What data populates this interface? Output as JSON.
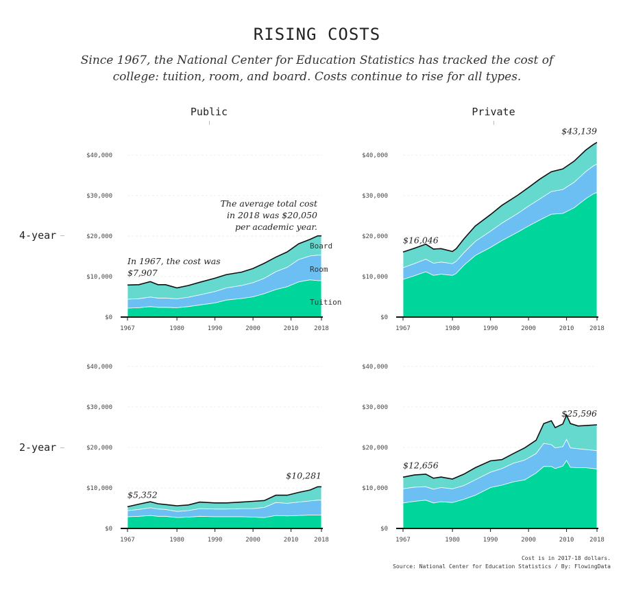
{
  "title": "RISING COSTS",
  "subtitle": "Since 1967, the National Center for Education Statistics has tracked the cost of college: tuition, room, and board. Costs continue to rise for all types.",
  "columns": [
    "Public",
    "Private"
  ],
  "rows": [
    "4-year",
    "2-year"
  ],
  "note_line1": "Cost is in 2017-18 dollars.",
  "note_line2": "Source: National Center for Education Statistics / By: FlowingData",
  "colors": {
    "tuition": "#00d69b",
    "room": "#6cbff2",
    "board": "#66d9cf",
    "line": "#111111"
  },
  "chart_data": [
    {
      "type": "area",
      "panel": "Public 4-year",
      "x": [
        1967,
        1970,
        1973,
        1975,
        1977,
        1980,
        1983,
        1986,
        1990,
        1993,
        1997,
        2000,
        2003,
        2006,
        2009,
        2012,
        2015,
        2017,
        2018
      ],
      "series": [
        {
          "name": "Tuition",
          "values": [
            2200,
            2300,
            2600,
            2400,
            2400,
            2300,
            2600,
            3000,
            3500,
            4200,
            4600,
            5000,
            5800,
            6800,
            7500,
            8700,
            9200,
            9000,
            9000
          ]
        },
        {
          "name": "Room",
          "values": [
            2200,
            2250,
            2350,
            2300,
            2300,
            2200,
            2300,
            2500,
            2800,
            3000,
            3200,
            3500,
            3800,
            4400,
            4800,
            5500,
            5900,
            6300,
            6300
          ]
        },
        {
          "name": "Board",
          "values": [
            3507,
            3450,
            3800,
            3300,
            3300,
            2700,
            2900,
            3100,
            3300,
            3300,
            3300,
            3500,
            3700,
            3600,
            3800,
            3900,
            4100,
            4750,
            4750
          ]
        }
      ],
      "totals": [
        7907,
        8000,
        8750,
        8000,
        8000,
        7200,
        7800,
        8600,
        9600,
        10500,
        11100,
        12000,
        13300,
        14800,
        16100,
        18100,
        19200,
        20050,
        20050
      ],
      "ylim": [
        0,
        40000
      ],
      "yticks": [
        "$0",
        "$10,000",
        "$20,000",
        "$30,000",
        "$40,000"
      ],
      "xticks": [
        "1967",
        "1980",
        "1990",
        "2000",
        "2010",
        "2018"
      ],
      "annotations": {
        "start_line1": "In 1967, the cost was",
        "start_line2": "$7,907",
        "end_line1": "The average total cost",
        "end_line2": "in 2018 was $20,050",
        "end_line3": "per academic year.",
        "label_board": "Board",
        "label_room": "Room",
        "label_tuition": "Tuition"
      }
    },
    {
      "type": "area",
      "panel": "Private 4-year",
      "x": [
        1967,
        1970,
        1973,
        1975,
        1977,
        1980,
        1981,
        1983,
        1986,
        1990,
        1993,
        1997,
        2000,
        2003,
        2006,
        2009,
        2012,
        2015,
        2017,
        2018
      ],
      "series": [
        {
          "name": "Tuition",
          "values": [
            9300,
            10200,
            11200,
            10300,
            10600,
            10300,
            10800,
            12800,
            15200,
            17200,
            18900,
            20900,
            22500,
            24000,
            25400,
            25600,
            27000,
            29200,
            30400,
            30800
          ]
        },
        {
          "name": "Room",
          "values": [
            2900,
            3000,
            3100,
            3000,
            3000,
            2900,
            3000,
            3100,
            3500,
            4000,
            4300,
            4600,
            4900,
            5200,
            5600,
            5900,
            6300,
            6700,
            6900,
            7000
          ]
        },
        {
          "name": "Board",
          "values": [
            3846,
            3800,
            3700,
            3500,
            3300,
            3000,
            3100,
            3400,
            3800,
            4100,
            4400,
            4500,
            4600,
            4900,
            4900,
            5100,
            5200,
            5300,
            5300,
            5339
          ]
        }
      ],
      "totals": [
        16046,
        17000,
        18000,
        16800,
        16900,
        16200,
        16900,
        19300,
        22500,
        25300,
        27600,
        30000,
        32000,
        34100,
        35900,
        36600,
        38500,
        41200,
        42600,
        43139
      ],
      "ylim": [
        0,
        40000
      ],
      "yticks": [
        "$0",
        "$10,000",
        "$20,000",
        "$30,000",
        "$40,000"
      ],
      "xticks": [
        "1967",
        "1980",
        "1990",
        "2000",
        "2010",
        "2018"
      ],
      "annotations": {
        "start_value": "$16,046",
        "end_value": "$43,139"
      }
    },
    {
      "type": "area",
      "panel": "Public 2-year",
      "x": [
        1967,
        1970,
        1973,
        1975,
        1977,
        1980,
        1983,
        1986,
        1990,
        1993,
        1997,
        2000,
        2003,
        2006,
        2009,
        2012,
        2015,
        2017,
        2018
      ],
      "series": [
        {
          "name": "Tuition",
          "values": [
            2900,
            3000,
            3200,
            3000,
            3000,
            2700,
            2800,
            3000,
            2900,
            2900,
            2900,
            2800,
            2700,
            3200,
            3100,
            3200,
            3300,
            3300,
            3300
          ]
        },
        {
          "name": "Room",
          "values": [
            1500,
            1700,
            1900,
            1800,
            1700,
            1500,
            1600,
            1900,
            1900,
            1900,
            2000,
            2100,
            2500,
            3200,
            3100,
            3300,
            3500,
            3700,
            3700
          ]
        },
        {
          "name": "Board",
          "values": [
            952,
            1300,
            1500,
            1300,
            1200,
            1400,
            1400,
            1600,
            1500,
            1500,
            1600,
            1800,
            1700,
            1800,
            2000,
            2400,
            2700,
            3281,
            3281
          ]
        }
      ],
      "totals": [
        5352,
        6000,
        6600,
        6100,
        5900,
        5600,
        5800,
        6500,
        6300,
        6300,
        6500,
        6700,
        6900,
        8200,
        8200,
        8900,
        9500,
        10281,
        10281
      ],
      "ylim": [
        0,
        40000
      ],
      "yticks": [
        "$0",
        "$10,000",
        "$20,000",
        "$30,000",
        "$40,000"
      ],
      "xticks": [
        "1967",
        "1980",
        "1990",
        "2000",
        "2010",
        "2018"
      ],
      "annotations": {
        "start_value": "$5,352",
        "end_value": "$10,281"
      }
    },
    {
      "type": "area",
      "panel": "Private 2-year",
      "x": [
        1967,
        1970,
        1973,
        1975,
        1977,
        1980,
        1983,
        1986,
        1990,
        1993,
        1996,
        1999,
        2002,
        2004,
        2006,
        2007,
        2009,
        2010,
        2011,
        2013,
        2015,
        2018
      ],
      "series": [
        {
          "name": "Tuition",
          "values": [
            6300,
            6700,
            7000,
            6300,
            6600,
            6400,
            7200,
            8200,
            10100,
            10700,
            11500,
            12000,
            13700,
            15300,
            15300,
            14800,
            15400,
            16800,
            15100,
            15000,
            15000,
            14700
          ]
        },
        {
          "name": "Room",
          "values": [
            3500,
            3500,
            3300,
            3400,
            3500,
            3400,
            3400,
            3800,
            3800,
            4100,
            4600,
            4900,
            4800,
            5700,
            5400,
            5100,
            4800,
            5200,
            4800,
            4700,
            4500,
            4500
          ]
        },
        {
          "name": "Board",
          "values": [
            2856,
            3000,
            3100,
            2700,
            2600,
            2400,
            2800,
            3000,
            2800,
            2200,
            2400,
            3000,
            3300,
            4900,
            5900,
            5000,
            5600,
            6000,
            6000,
            5600,
            5900,
            6396
          ]
        }
      ],
      "totals": [
        12656,
        13200,
        13400,
        12400,
        12700,
        12200,
        13400,
        15000,
        16700,
        17000,
        18500,
        19900,
        21800,
        25900,
        26600,
        24900,
        25800,
        28000,
        25900,
        25300,
        25400,
        25596
      ],
      "ylim": [
        0,
        40000
      ],
      "yticks": [
        "$0",
        "$10,000",
        "$20,000",
        "$30,000",
        "$40,000"
      ],
      "xticks": [
        "1967",
        "1980",
        "1990",
        "2000",
        "2010",
        "2018"
      ],
      "annotations": {
        "start_value": "$12,656",
        "end_value": "$25,596"
      }
    }
  ]
}
